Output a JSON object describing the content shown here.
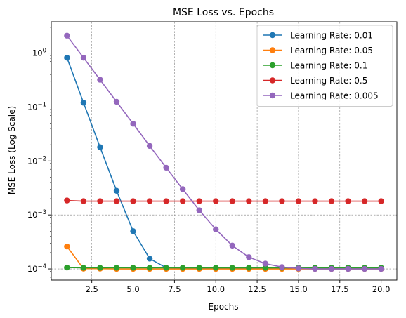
{
  "chart_data": {
    "type": "line",
    "title": "MSE Loss vs. Epochs",
    "xlabel": "Epochs",
    "ylabel": "MSE Loss (Log Scale)",
    "yscale": "log",
    "xlim": [
      0.05,
      20.95
    ],
    "ylim": [
      6.2e-05,
      3.8
    ],
    "grid": true,
    "legend_position": "top-right",
    "x_ticks": [
      2.5,
      5.0,
      7.5,
      10.0,
      12.5,
      15.0,
      17.5,
      20.0
    ],
    "x_tick_labels": [
      "2.5",
      "5.0",
      "7.5",
      "10.0",
      "12.5",
      "15.0",
      "17.5",
      "20.0"
    ],
    "y_ticks": [
      0.0001,
      0.001,
      0.01,
      0.1,
      1
    ],
    "y_tick_labels": [
      {
        "base": "10",
        "exp": "−4"
      },
      {
        "base": "10",
        "exp": "−3"
      },
      {
        "base": "10",
        "exp": "−2"
      },
      {
        "base": "10",
        "exp": "−1"
      },
      {
        "base": "10",
        "exp": "0"
      }
    ],
    "x": [
      1,
      2,
      3,
      4,
      5,
      6,
      7,
      8,
      9,
      10,
      11,
      12,
      13,
      14,
      15,
      16,
      17,
      18,
      19,
      20
    ],
    "series": [
      {
        "name": "Learning Rate: 0.01",
        "color": "#1f77b4",
        "values": [
          0.82,
          0.12,
          0.018,
          0.0028,
          0.0005,
          0.000155,
          0.000105,
          0.000104,
          0.000104,
          0.000103,
          0.000103,
          0.000103,
          0.000103,
          0.000103,
          0.000103,
          0.000103,
          0.000103,
          0.000103,
          0.000103,
          0.000103
        ]
      },
      {
        "name": "Learning Rate: 0.05",
        "color": "#ff7f0e",
        "values": [
          0.00026,
          0.000101,
          0.000101,
          0.0001,
          0.0001,
          0.0001,
          0.0001,
          0.0001,
          0.0001,
          0.0001,
          0.0001,
          0.0001,
          0.0001,
          0.0001,
          0.0001,
          0.0001,
          0.0001,
          0.0001,
          0.0001,
          0.0001
        ]
      },
      {
        "name": "Learning Rate: 0.1",
        "color": "#2ca02c",
        "values": [
          0.000106,
          0.000105,
          0.000105,
          0.000105,
          0.000105,
          0.000105,
          0.000105,
          0.000105,
          0.000105,
          0.000105,
          0.000105,
          0.000105,
          0.000105,
          0.000105,
          0.000105,
          0.000105,
          0.000105,
          0.000105,
          0.000105,
          0.000105
        ]
      },
      {
        "name": "Learning Rate: 0.5",
        "color": "#d62728",
        "values": [
          0.00185,
          0.0018,
          0.0018,
          0.0018,
          0.0018,
          0.0018,
          0.0018,
          0.0018,
          0.0018,
          0.0018,
          0.0018,
          0.0018,
          0.0018,
          0.0018,
          0.0018,
          0.0018,
          0.0018,
          0.0018,
          0.0018,
          0.0018
        ]
      },
      {
        "name": "Learning Rate: 0.005",
        "color": "#9467bd",
        "values": [
          2.1,
          0.82,
          0.32,
          0.125,
          0.049,
          0.019,
          0.0075,
          0.003,
          0.00122,
          0.00054,
          0.00027,
          0.000165,
          0.000125,
          0.000108,
          0.000102,
          0.0001,
          0.0001,
          0.0001,
          0.0001,
          0.0001
        ]
      }
    ]
  }
}
